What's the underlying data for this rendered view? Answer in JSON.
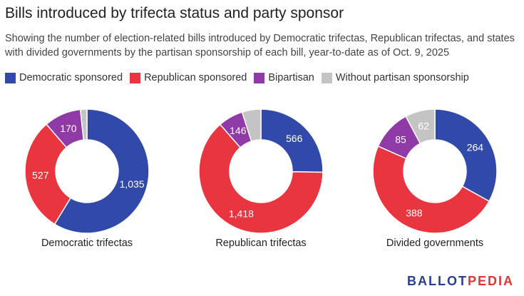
{
  "title": "Bills introduced by trifecta status and party sponsor",
  "subtitle": "Showing the number of election-related bills introduced by Democratic trifectas, Republican trifectas, and states with divided governments by the partisan sponsorship of each bill, year-to-date as of Oct. 9, 2025",
  "legend": [
    {
      "label": "Democratic sponsored",
      "color": "#3149a9"
    },
    {
      "label": "Republican sponsored",
      "color": "#e8353f"
    },
    {
      "label": "Bipartisan",
      "color": "#8f3aa6"
    },
    {
      "label": "Without partisan sponsorship",
      "color": "#c4c4c4"
    }
  ],
  "logo": {
    "part1": "BALLOT",
    "part2": "PEDIA"
  },
  "chart_data": [
    {
      "type": "pie",
      "donut": true,
      "title": "Democratic trifectas",
      "categories": [
        "Democratic sponsored",
        "Republican sponsored",
        "Bipartisan",
        "Without partisan sponsorship"
      ],
      "values": [
        1035,
        527,
        170,
        30
      ],
      "labels": [
        "1,035",
        "527",
        "170",
        ""
      ]
    },
    {
      "type": "pie",
      "donut": true,
      "title": "Republican trifectas",
      "categories": [
        "Democratic sponsored",
        "Republican sponsored",
        "Bipartisan",
        "Without partisan sponsorship"
      ],
      "values": [
        566,
        1418,
        146,
        110
      ],
      "labels": [
        "566",
        "1,418",
        "146",
        ""
      ]
    },
    {
      "type": "pie",
      "donut": true,
      "title": "Divided governments",
      "categories": [
        "Democratic sponsored",
        "Republican sponsored",
        "Bipartisan",
        "Without partisan sponsorship"
      ],
      "values": [
        264,
        388,
        85,
        62
      ],
      "labels": [
        "264",
        "388",
        "85",
        "62"
      ]
    }
  ]
}
